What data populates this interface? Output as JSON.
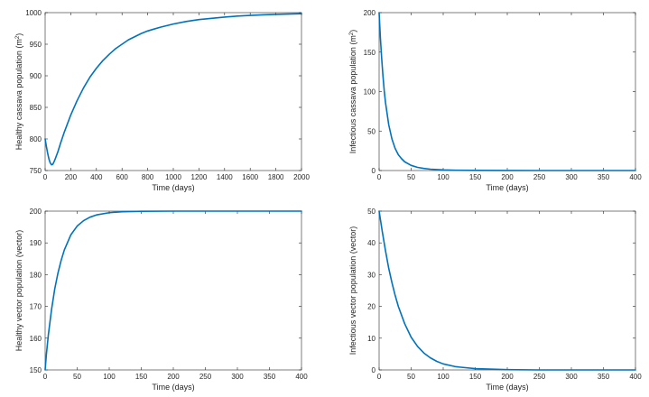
{
  "chart_data": [
    {
      "type": "line",
      "xlabel": "Time (days)",
      "ylabel": "Healthy cassava population (m",
      "ylabel_sup": "2",
      "ylabel_end": ")",
      "xlim": [
        0,
        2000
      ],
      "ylim": [
        750,
        1000
      ],
      "xticks": [
        0,
        200,
        400,
        600,
        800,
        1000,
        1200,
        1400,
        1600,
        1800,
        2000
      ],
      "yticks": [
        750,
        800,
        850,
        900,
        950,
        1000
      ],
      "grid": false,
      "series": [
        {
          "color": "#0072BD",
          "x": [
            0,
            10,
            20,
            30,
            40,
            50,
            60,
            70,
            80,
            100,
            120,
            150,
            200,
            250,
            300,
            350,
            400,
            450,
            500,
            550,
            600,
            650,
            700,
            750,
            800,
            850,
            900,
            1000,
            1100,
            1200,
            1300,
            1400,
            1500,
            1600,
            1700,
            1800,
            1900,
            2000
          ],
          "y": [
            800,
            788,
            777,
            768,
            762,
            759,
            760,
            764,
            769,
            780,
            793,
            811,
            838,
            861,
            881,
            898,
            912,
            924,
            934,
            943,
            950,
            957,
            962,
            967,
            971,
            974,
            977,
            982,
            986,
            989,
            991,
            993,
            994.5,
            995.6,
            996.5,
            997.3,
            997.8,
            998.3
          ]
        }
      ]
    },
    {
      "type": "line",
      "xlabel": "Time (days)",
      "ylabel": "Infectious cassava population (m",
      "ylabel_sup": "2",
      "ylabel_end": ")",
      "xlim": [
        0,
        400
      ],
      "ylim": [
        0,
        200
      ],
      "xticks": [
        0,
        50,
        100,
        150,
        200,
        250,
        300,
        350,
        400
      ],
      "yticks": [
        0,
        50,
        100,
        150,
        200
      ],
      "grid": false,
      "series": [
        {
          "color": "#0072BD",
          "x": [
            0,
            2,
            4,
            6,
            8,
            10,
            15,
            20,
            25,
            30,
            35,
            40,
            50,
            60,
            70,
            80,
            90,
            100,
            120,
            150,
            200,
            250,
            300,
            350,
            400
          ],
          "y": [
            200,
            168,
            142,
            120,
            101,
            86,
            58,
            40,
            28,
            20,
            15,
            11,
            6.5,
            4,
            2.6,
            1.7,
            1.2,
            0.8,
            0.4,
            0.2,
            0.05,
            0,
            0,
            0,
            0
          ]
        }
      ]
    },
    {
      "type": "line",
      "xlabel": "Time (days)",
      "ylabel": "Healthy vector population (vector)",
      "xlim": [
        0,
        400
      ],
      "ylim": [
        150,
        200
      ],
      "xticks": [
        0,
        50,
        100,
        150,
        200,
        250,
        300,
        350,
        400
      ],
      "yticks": [
        150,
        160,
        170,
        180,
        190,
        200
      ],
      "grid": false,
      "series": [
        {
          "color": "#0072BD",
          "x": [
            0,
            2,
            5,
            10,
            15,
            20,
            25,
            30,
            40,
            50,
            60,
            70,
            80,
            100,
            120,
            150,
            200,
            250,
            300,
            350,
            400
          ],
          "y": [
            150,
            155,
            161,
            169,
            175.5,
            180.5,
            184.5,
            187.8,
            192.5,
            195.3,
            197,
            198.1,
            198.8,
            199.5,
            199.8,
            199.95,
            200,
            200,
            200,
            200,
            200
          ]
        }
      ]
    },
    {
      "type": "line",
      "xlabel": "Time (days)",
      "ylabel": "Infectious vector population (vector)",
      "xlim": [
        0,
        400
      ],
      "ylim": [
        0,
        50
      ],
      "xticks": [
        0,
        50,
        100,
        150,
        200,
        250,
        300,
        350,
        400
      ],
      "yticks": [
        0,
        10,
        20,
        30,
        40,
        50
      ],
      "grid": false,
      "series": [
        {
          "color": "#0072BD",
          "x": [
            0,
            5,
            10,
            15,
            20,
            25,
            30,
            40,
            50,
            60,
            70,
            80,
            90,
            100,
            120,
            150,
            200,
            250,
            300,
            350,
            400
          ],
          "y": [
            50,
            43.5,
            37.5,
            32,
            27.5,
            23.5,
            20,
            14.5,
            10.3,
            7.4,
            5.3,
            3.8,
            2.7,
            1.9,
            1,
            0.4,
            0.1,
            0,
            0,
            0,
            0
          ]
        }
      ]
    }
  ]
}
